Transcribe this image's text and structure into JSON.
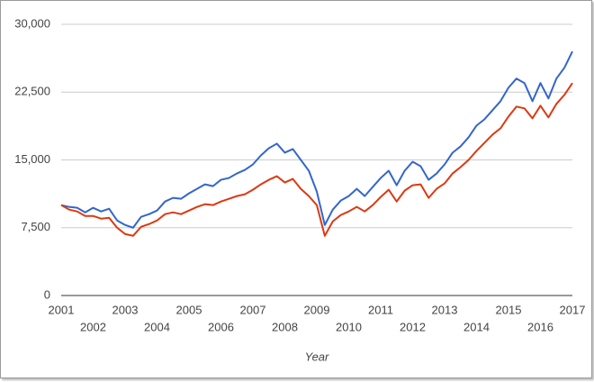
{
  "chart_data": {
    "type": "line",
    "x_label": "Year",
    "x": [
      2001,
      2001.25,
      2001.5,
      2001.75,
      2002,
      2002.25,
      2002.5,
      2002.75,
      2003,
      2003.25,
      2003.5,
      2003.75,
      2004,
      2004.25,
      2004.5,
      2004.75,
      2005,
      2005.25,
      2005.5,
      2005.75,
      2006,
      2006.25,
      2006.5,
      2006.75,
      2007,
      2007.25,
      2007.5,
      2007.75,
      2008,
      2008.25,
      2008.5,
      2008.75,
      2009,
      2009.25,
      2009.5,
      2009.75,
      2010,
      2010.25,
      2010.5,
      2010.75,
      2011,
      2011.25,
      2011.5,
      2011.75,
      2012,
      2012.25,
      2012.5,
      2012.75,
      2013,
      2013.25,
      2013.5,
      2013.75,
      2014,
      2014.25,
      2014.5,
      2014.75,
      2015,
      2015.25,
      2015.5,
      2015.75,
      2016,
      2016.25,
      2016.5,
      2016.75,
      2017
    ],
    "series": [
      {
        "color": "#3366cc",
        "values": [
          10000,
          9800,
          9700,
          9200,
          9700,
          9300,
          9600,
          8300,
          7800,
          7500,
          8700,
          9000,
          9400,
          10400,
          10800,
          10700,
          11300,
          11800,
          12300,
          12100,
          12800,
          13000,
          13500,
          13900,
          14500,
          15500,
          16300,
          16800,
          15800,
          16200,
          15000,
          13800,
          11500,
          7800,
          9500,
          10500,
          11000,
          11800,
          11000,
          12000,
          13000,
          13800,
          12200,
          13800,
          14800,
          14300,
          12800,
          13500,
          14500,
          15800,
          16500,
          17500,
          18800,
          19500,
          20500,
          21500,
          23000,
          24000,
          23500,
          21500,
          23500,
          21800,
          24000,
          25200,
          27000
        ]
      },
      {
        "color": "#dc3912",
        "values": [
          10000,
          9500,
          9300,
          8800,
          8800,
          8500,
          8600,
          7500,
          6800,
          6600,
          7600,
          7900,
          8300,
          9000,
          9200,
          9000,
          9400,
          9800,
          10100,
          10000,
          10400,
          10700,
          11000,
          11200,
          11700,
          12300,
          12800,
          13200,
          12500,
          12900,
          11800,
          11000,
          10000,
          6600,
          8200,
          8900,
          9300,
          9800,
          9300,
          10000,
          10900,
          11700,
          10400,
          11600,
          12200,
          12300,
          10800,
          11800,
          12400,
          13500,
          14200,
          15000,
          16000,
          16900,
          17800,
          18500,
          19800,
          20900,
          20700,
          19600,
          21000,
          19700,
          21200,
          22200,
          23500
        ]
      }
    ],
    "xlim": [
      2001,
      2017
    ],
    "xticks": [
      2001,
      2002,
      2003,
      2004,
      2005,
      2006,
      2007,
      2008,
      2009,
      2010,
      2011,
      2012,
      2013,
      2014,
      2015,
      2016,
      2017
    ],
    "ylim": [
      0,
      30000
    ],
    "yticks": [
      0,
      {
        "value": 7500,
        "label": "7,500"
      },
      {
        "value": 15000,
        "label": "15,000"
      },
      {
        "value": 22500,
        "label": "22,500"
      },
      {
        "value": 30000,
        "label": "30,000"
      }
    ],
    "grid": true
  }
}
